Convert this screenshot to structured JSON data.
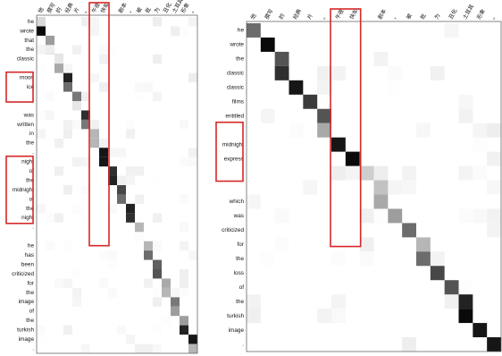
{
  "panels": [
    {
      "id": "left",
      "columns": [
        "他",
        "撰写",
        "的",
        "经典",
        "片",
        "。",
        "午夜",
        "快车",
        "",
        "剧本",
        "，",
        "被",
        "批",
        "为",
        "丑化",
        "土耳其",
        "形象",
        "。"
      ],
      "rows": [
        "he",
        "wrote",
        "that",
        "the",
        "classic",
        "",
        "moon",
        "ice",
        ".",
        "",
        "was",
        "written",
        "in",
        "the",
        ".",
        "night",
        "of",
        "the",
        "midnight",
        "of",
        "the",
        "night",
        ".",
        "",
        "he",
        "has",
        "been",
        "criticized",
        "for",
        "the",
        "image",
        "of",
        "the",
        "turkish",
        "image",
        "."
      ],
      "cells": [
        [
          0,
          0.15
        ],
        [
          1,
          1
        ],
        [
          2,
          0.4
        ],
        [
          3,
          0.45
        ],
        [
          3,
          0.07
        ],
        [
          4,
          0.75
        ],
        [
          4,
          0.1
        ],
        [
          5,
          0.35
        ],
        [
          6,
          0.9
        ],
        [
          7,
          0.6
        ],
        [
          8,
          0.55
        ],
        [
          9,
          0.1
        ],
        [
          10,
          0.85
        ],
        [
          11,
          0.55
        ],
        [
          12,
          0.3
        ],
        [
          13,
          0.3
        ],
        [
          14,
          0.95
        ],
        [
          15,
          0.95
        ],
        [
          16,
          0.85
        ],
        [
          17,
          0.9
        ],
        [
          18,
          0.75
        ],
        [
          19,
          0.6
        ],
        [
          20,
          0.9
        ],
        [
          21,
          0.85
        ],
        [
          22,
          0.3
        ],
        [
          24,
          0.3
        ],
        [
          25,
          0.6
        ],
        [
          26,
          0.65
        ],
        [
          27,
          0.7
        ],
        [
          28,
          0.35
        ],
        [
          29,
          0.3
        ],
        [
          30,
          0.55
        ],
        [
          31,
          0.4
        ],
        [
          32,
          0.4
        ],
        [
          33,
          0.9
        ],
        [
          34,
          0.95
        ],
        [
          35,
          0.3
        ]
      ],
      "highlights": {
        "column_group": {
          "from_col": 6,
          "to_col": 7
        },
        "row_groups": [
          {
            "from_row": 6,
            "to_row": 8
          },
          {
            "from_row": 15,
            "to_row": 21
          }
        ]
      }
    },
    {
      "id": "right",
      "columns": [
        "他",
        "撰写",
        "的",
        "经典",
        "片",
        "。",
        "午夜",
        "快车",
        "",
        "剧本",
        "，",
        "被",
        "批",
        "为",
        "丑化",
        "土耳其",
        "形象",
        "。"
      ],
      "rows": [
        "he",
        "wrote",
        "the",
        "classic",
        "classic",
        "films",
        "entitled",
        ".",
        "midnight",
        "express",
        ".",
        "",
        "which",
        "was",
        "criticized",
        "for",
        "the",
        "loss",
        "of",
        "the",
        "turkish",
        "image",
        "."
      ],
      "cells": [
        [
          0,
          0.6
        ],
        [
          1,
          1
        ],
        [
          2,
          0.7
        ],
        [
          3,
          0.85
        ],
        [
          4,
          0.95
        ],
        [
          5,
          0.8
        ],
        [
          6,
          0.7
        ],
        [
          7,
          0.35
        ],
        [
          8,
          0.95
        ],
        [
          9,
          1
        ],
        [
          10,
          0.2
        ],
        [
          11,
          0.25
        ],
        [
          12,
          0.35
        ],
        [
          13,
          0.4
        ],
        [
          14,
          0.6
        ],
        [
          15,
          0.3
        ],
        [
          16,
          0.6
        ],
        [
          17,
          0.75
        ],
        [
          18,
          0.7
        ],
        [
          19,
          0.9
        ],
        [
          20,
          1
        ],
        [
          21,
          0.95
        ],
        [
          22,
          0.95
        ]
      ],
      "highlights": {
        "column_group": {
          "from_col": 6,
          "to_col": 7
        },
        "row_groups": [
          {
            "from_row": 7,
            "to_row": 10
          }
        ]
      }
    }
  ]
}
